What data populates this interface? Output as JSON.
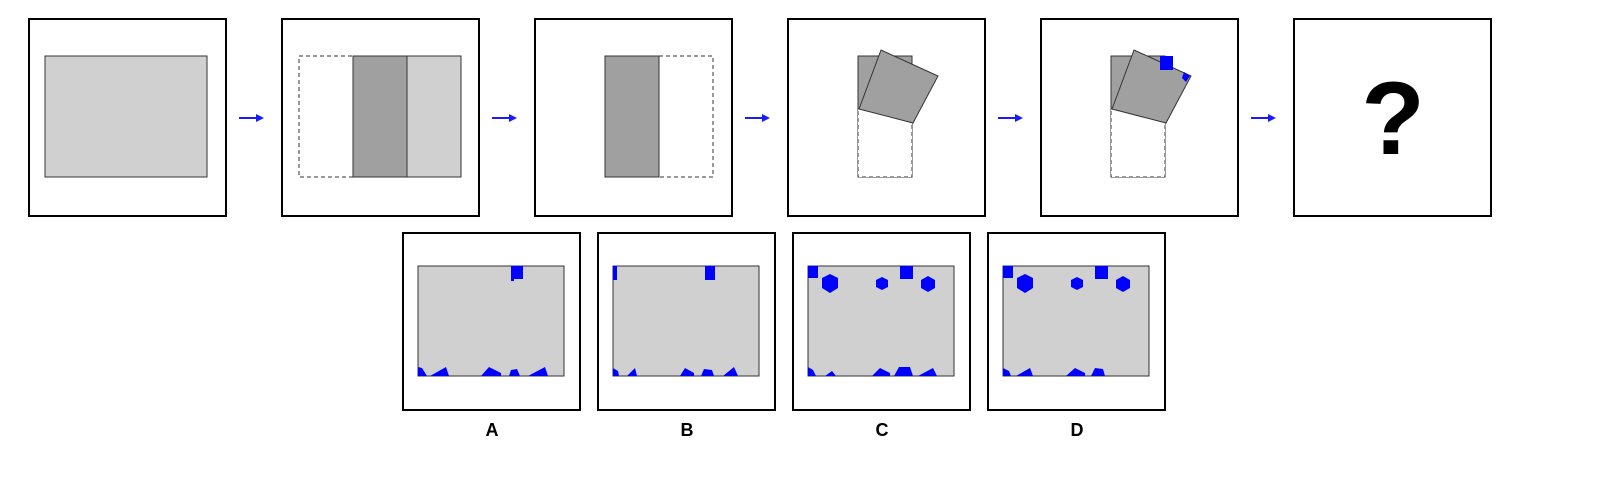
{
  "puzzle": {
    "question_mark": "?",
    "arrow_color": "#1a1aff",
    "colors": {
      "paper": "#d0d0d0",
      "folded": "#a0a0a0",
      "hole": "#0000ff",
      "frame": "#000000"
    }
  },
  "options": [
    {
      "label": "A"
    },
    {
      "label": "B"
    },
    {
      "label": "C"
    },
    {
      "label": "D"
    }
  ]
}
